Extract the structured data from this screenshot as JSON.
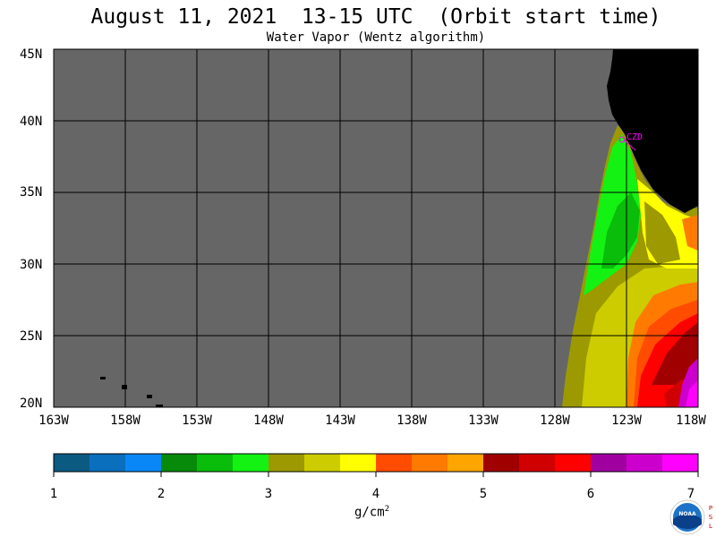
{
  "title": "August 11, 2021  13-15 UTC  (Orbit start time)",
  "subtitle": "Water Vapor (Wentz algorithm)",
  "lat_labels": [
    "45N",
    "40N",
    "35N",
    "30N",
    "25N",
    "20N"
  ],
  "lon_labels": [
    "163W",
    "158W",
    "153W",
    "148W",
    "143W",
    "138W",
    "133W",
    "128W",
    "123W",
    "118W"
  ],
  "station_label": "CZD",
  "colorbar": {
    "tick_labels": [
      "1",
      "2",
      "3",
      "4",
      "5",
      "6",
      "7"
    ],
    "unit": "g/cm",
    "unit_sup": "2",
    "min": 1,
    "max": 7,
    "colors": [
      "#0b5a82",
      "#0a6fbd",
      "#0a87f6",
      "#078a0a",
      "#09bd0a",
      "#14f214",
      "#9c9a00",
      "#cccc00",
      "#ffff00",
      "#ff4c00",
      "#ff7a00",
      "#ffa500",
      "#a00000",
      "#d10000",
      "#ff0000",
      "#a000a0",
      "#cc00cc",
      "#ff00ff"
    ]
  },
  "map": {
    "lon_range": [
      -163,
      -118
    ],
    "lat_range": [
      20,
      45
    ],
    "no_data_color": "#666666",
    "land_color": "#000000",
    "grid_color": "#000000"
  },
  "logo": {
    "text": "NOAA",
    "side_text": "PSL"
  }
}
